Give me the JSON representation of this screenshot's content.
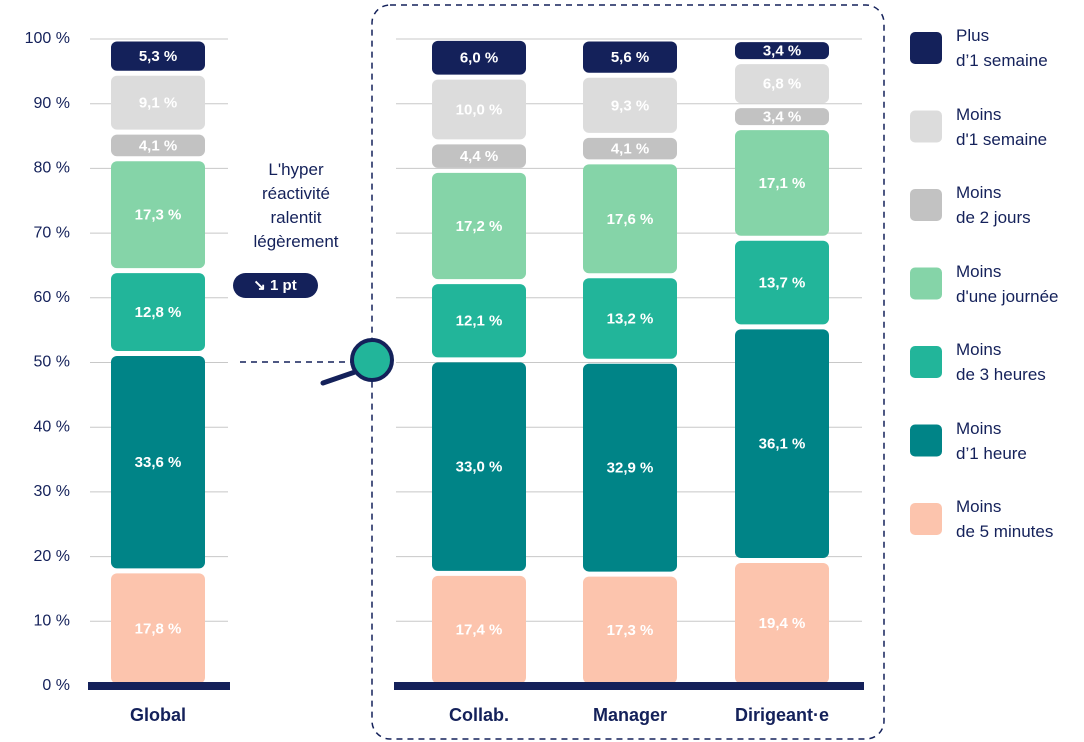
{
  "chart_data": {
    "type": "stacked_bar",
    "categories": [
      "Global",
      "Collab.",
      "Manager",
      "Dirigeant·e"
    ],
    "ylim": [
      0,
      100
    ],
    "yticks": [
      {
        "value": 0,
        "label": "0 %"
      },
      {
        "value": 10,
        "label": "10 %"
      },
      {
        "value": 20,
        "label": "20 %"
      },
      {
        "value": 30,
        "label": "30 %"
      },
      {
        "value": 40,
        "label": "40 %"
      },
      {
        "value": 50,
        "label": "50 %"
      },
      {
        "value": 60,
        "label": "60 %"
      },
      {
        "value": 70,
        "label": "70 %"
      },
      {
        "value": 80,
        "label": "80 %"
      },
      {
        "value": 90,
        "label": "90 %"
      },
      {
        "value": 100,
        "label": "100 %"
      }
    ],
    "grid": true,
    "legend": "right",
    "series": [
      {
        "name": "Moins\nde 5 minutes",
        "color": "#fcc4ad",
        "values": [
          17.8,
          17.4,
          17.3,
          19.4
        ],
        "value_labels": [
          "17,8 %",
          "17,4 %",
          "17,3 %",
          "19,4 %"
        ]
      },
      {
        "name": "Moins\nd’1 heure",
        "color": "#008487",
        "values": [
          33.6,
          33.0,
          32.9,
          36.1
        ],
        "value_labels": [
          "33,6 %",
          "33,0 %",
          "32,9 %",
          "36,1 %"
        ]
      },
      {
        "name": "Moins\nde 3 heures",
        "color": "#22b59a",
        "values": [
          12.8,
          12.1,
          13.2,
          13.7
        ],
        "value_labels": [
          "12,8 %",
          "12,1 %",
          "13,2 %",
          "13,7 %"
        ]
      },
      {
        "name": "Moins\nd'une journée",
        "color": "#85d4a8",
        "values": [
          17.3,
          17.2,
          17.6,
          17.1
        ],
        "value_labels": [
          "17,3 %",
          "17,2 %",
          "17,6 %",
          "17,1 %"
        ]
      },
      {
        "name": "Moins\nde 2 jours",
        "color": "#c2c2c2",
        "values": [
          4.1,
          4.4,
          4.1,
          3.4
        ],
        "value_labels": [
          "4,1 %",
          "4,4 %",
          "4,1 %",
          "3,4 %"
        ]
      },
      {
        "name": "Moins\nd'1 semaine",
        "color": "#dcdcdc",
        "values": [
          9.1,
          10.0,
          9.3,
          6.8
        ],
        "value_labels": [
          "9,1 %",
          "10,0 %",
          "9,3 %",
          "6,8 %"
        ]
      },
      {
        "name": "Plus\nd’1 semaine",
        "color": "#14215a",
        "values": [
          5.3,
          6.0,
          5.6,
          3.4
        ],
        "value_labels": [
          "5,3 %",
          "6,0 %",
          "5,6 %",
          "3,4 %"
        ]
      }
    ],
    "annotation": {
      "text": "L'hyper\nréactivité\nralentit\nlégèrement",
      "badge": "↘ 1 pt"
    }
  }
}
